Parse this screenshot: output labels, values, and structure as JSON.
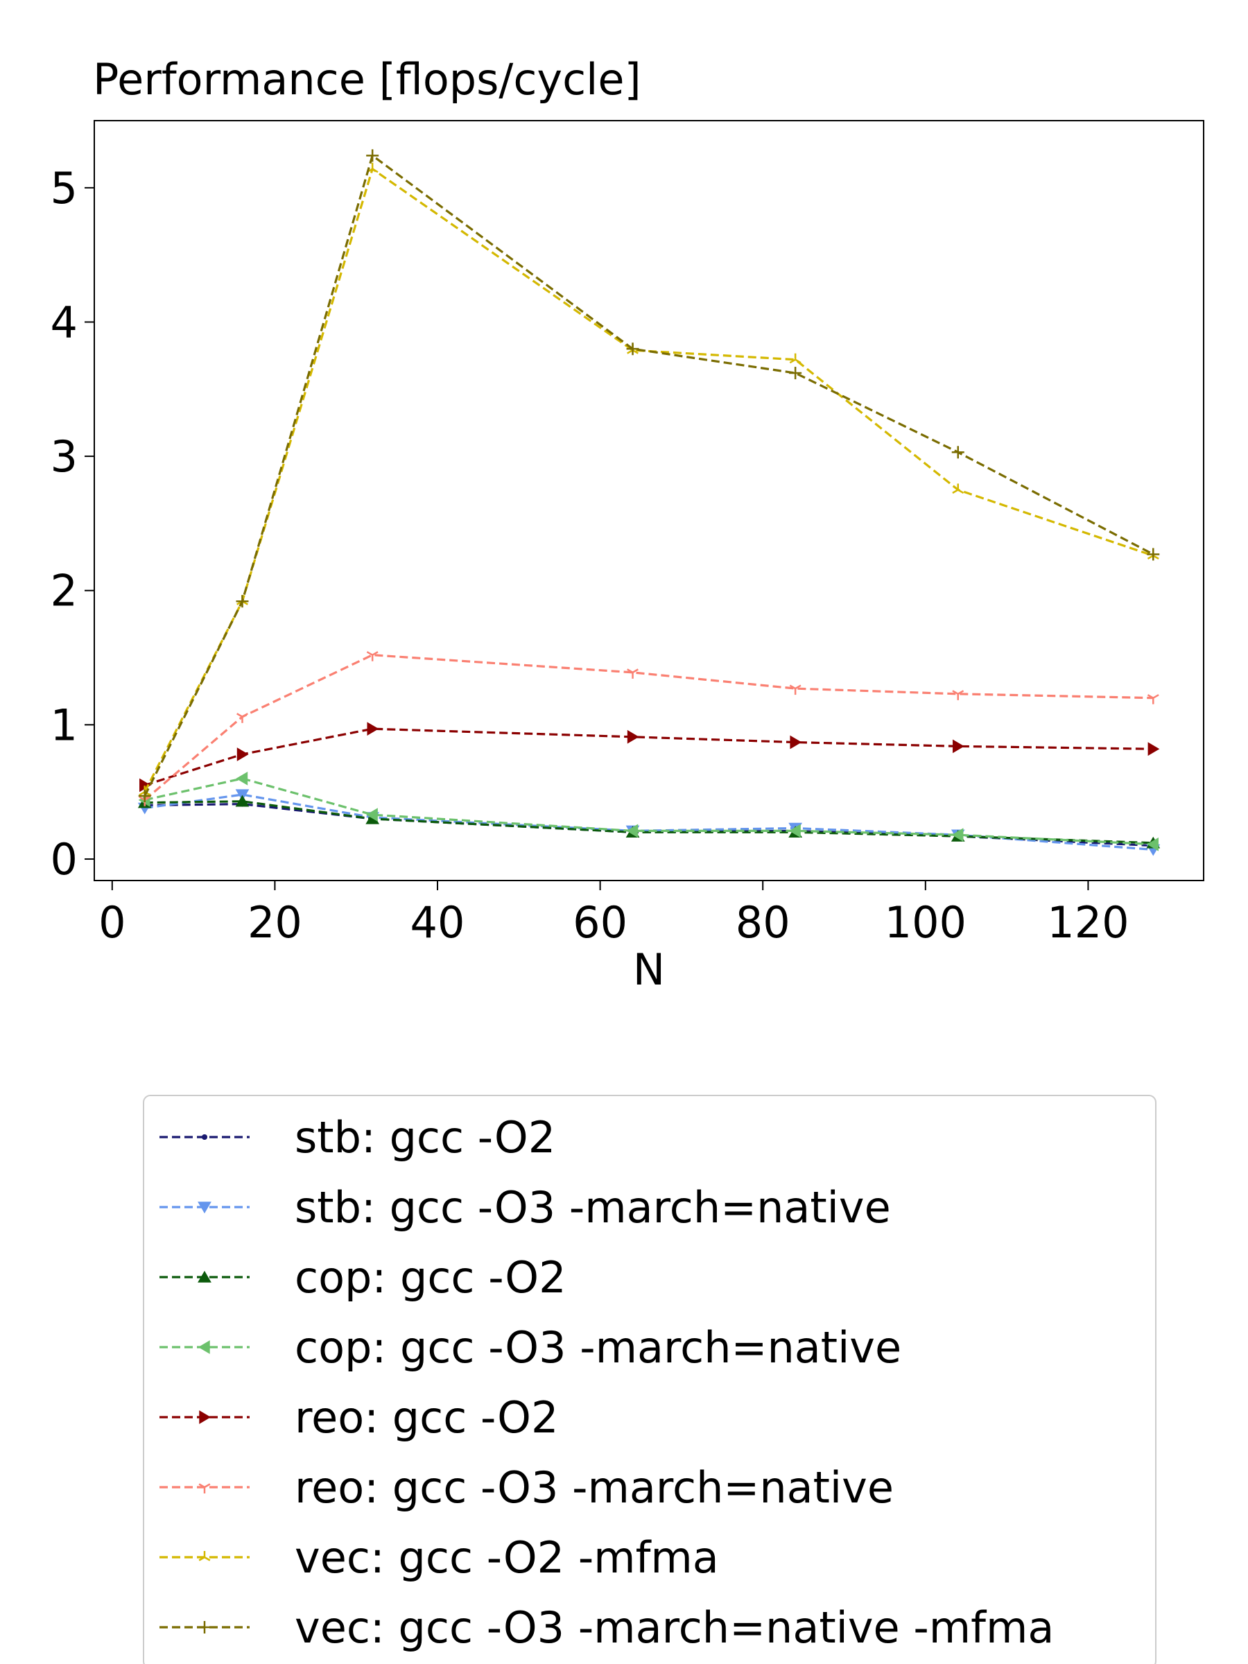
{
  "chart_data": {
    "type": "line",
    "title": "Performance [flops/cycle]",
    "xlabel": "N",
    "ylabel": "",
    "xlim": [
      -2.2,
      134.2
    ],
    "ylim": [
      -0.16,
      5.5
    ],
    "x_ticks": [
      0,
      20,
      40,
      60,
      80,
      100,
      120
    ],
    "y_ticks": [
      0,
      1,
      2,
      3,
      4,
      5
    ],
    "grid": false,
    "legend_position": "below",
    "x": [
      4,
      16,
      32,
      64,
      84,
      104,
      128
    ],
    "series": [
      {
        "name": "stb:  gcc -O2",
        "color": "#191970",
        "marker": "dot",
        "values": [
          0.4,
          0.41,
          0.3,
          0.2,
          0.21,
          0.17,
          0.1
        ]
      },
      {
        "name": "stb:  gcc -O3 -march=native",
        "color": "#6495ed",
        "marker": "triangle-down",
        "values": [
          0.38,
          0.48,
          0.31,
          0.21,
          0.23,
          0.18,
          0.07
        ]
      },
      {
        "name": "cop:  gcc -O2",
        "color": "#0b5a0b",
        "marker": "triangle-up",
        "values": [
          0.42,
          0.43,
          0.3,
          0.2,
          0.2,
          0.17,
          0.12
        ]
      },
      {
        "name": "cop:  gcc -O3 -march=native",
        "color": "#6cc16c",
        "marker": "triangle-left",
        "values": [
          0.44,
          0.6,
          0.33,
          0.21,
          0.21,
          0.18,
          0.11
        ]
      },
      {
        "name": "reo:  gcc -O2",
        "color": "#8b0000",
        "marker": "triangle-right",
        "values": [
          0.55,
          0.78,
          0.97,
          0.91,
          0.87,
          0.84,
          0.82
        ]
      },
      {
        "name": "reo:  gcc -O3 -march=native",
        "color": "#fa8072",
        "marker": "tri-down",
        "values": [
          0.44,
          1.06,
          1.52,
          1.39,
          1.27,
          1.23,
          1.2
        ]
      },
      {
        "name": "vec:  gcc -O2 -mfma",
        "color": "#d4b800",
        "marker": "tri-up",
        "values": [
          0.5,
          1.92,
          5.14,
          3.79,
          3.72,
          2.75,
          2.26
        ]
      },
      {
        "name": "vec:  gcc -O3 -march=native -mfma",
        "color": "#7a6c00",
        "marker": "plus",
        "values": [
          0.47,
          1.92,
          5.24,
          3.8,
          3.62,
          3.03,
          2.27
        ]
      }
    ]
  }
}
